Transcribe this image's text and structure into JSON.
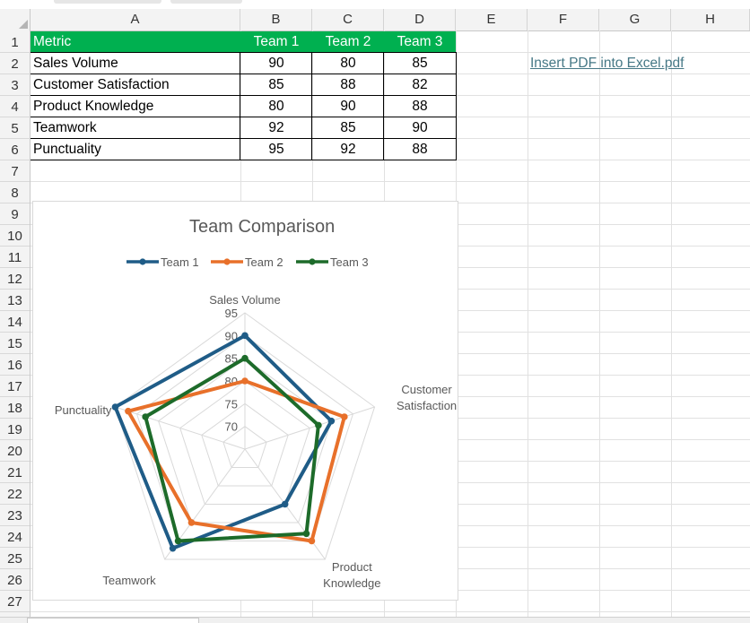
{
  "sheet": {
    "columns": [
      "A",
      "B",
      "C",
      "D",
      "E",
      "F",
      "G",
      "H"
    ],
    "rows": [
      "1",
      "2",
      "3",
      "4",
      "5",
      "6",
      "7",
      "8",
      "9",
      "10",
      "11",
      "12",
      "13",
      "14",
      "15",
      "16",
      "17",
      "18",
      "19",
      "20",
      "21",
      "22",
      "23",
      "24",
      "25",
      "26",
      "27"
    ],
    "table": {
      "header": [
        "Metric",
        "Team 1",
        "Team 2",
        "Team 3"
      ],
      "data": [
        [
          "Sales Volume",
          "90",
          "80",
          "85"
        ],
        [
          "Customer Satisfaction",
          "85",
          "88",
          "82"
        ],
        [
          "Product Knowledge",
          "80",
          "90",
          "88"
        ],
        [
          "Teamwork",
          "92",
          "85",
          "90"
        ],
        [
          "Punctuality",
          "95",
          "92",
          "88"
        ]
      ],
      "header_fill": "#00b050"
    },
    "link_text": "Insert PDF into Excel.pdf",
    "link_color": "#467886"
  },
  "chart_data": {
    "type": "radar",
    "title": "Team Comparison",
    "categories": [
      "Sales Volume",
      "Customer Satisfaction",
      "Product Knowledge",
      "Teamwork",
      "Punctuality"
    ],
    "category_lines": [
      [
        "Sales Volume"
      ],
      [
        "Customer",
        "Satisfaction"
      ],
      [
        "Product",
        "Knowledge"
      ],
      [
        "Teamwork"
      ],
      [
        "Punctuality"
      ]
    ],
    "ticks": [
      "70",
      "75",
      "80",
      "85",
      "90",
      "95"
    ],
    "range": [
      65,
      95
    ],
    "series": [
      {
        "name": "Team 1",
        "values": [
          90,
          85,
          80,
          92,
          95
        ],
        "color": "#1f5c87"
      },
      {
        "name": "Team 2",
        "values": [
          80,
          88,
          90,
          85,
          92
        ],
        "color": "#e8702a"
      },
      {
        "name": "Team 3",
        "values": [
          85,
          82,
          88,
          90,
          88
        ],
        "color": "#1d6b2a"
      }
    ],
    "legend_position": "top"
  }
}
